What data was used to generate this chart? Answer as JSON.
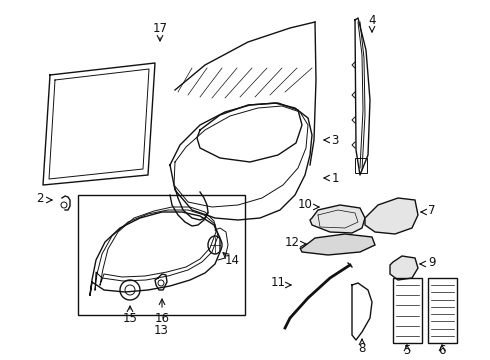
{
  "background_color": "#ffffff",
  "line_color": "#111111",
  "fig_width": 4.9,
  "fig_height": 3.6,
  "dpi": 100,
  "label_fontsize": 8.5
}
